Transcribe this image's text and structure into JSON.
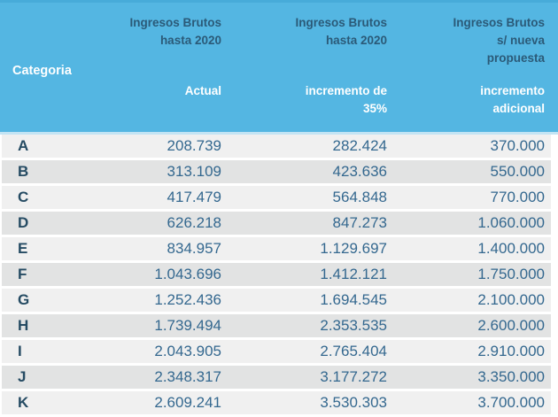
{
  "colors": {
    "header_bg": "#54b6e2",
    "header_top_strip": "#47abd9",
    "header_dark_text": "#2b5a78",
    "header_white_text": "#ffffff",
    "header_divider": "#c3e4f4",
    "row_odd_bg": "#f0f0f0",
    "row_even_bg": "#e2e3e3",
    "category_text": "#254b63",
    "number_text": "#34688f"
  },
  "header": {
    "categoria": "Categoria",
    "col_actual": {
      "group_line1": "Ingresos Brutos",
      "group_line2": "hasta 2020",
      "sub_line1": "Actual"
    },
    "col_incremento35": {
      "group_line1": "Ingresos Brutos",
      "group_line2": "hasta 2020",
      "sub_line1": "incremento de",
      "sub_line2": "35%"
    },
    "col_adicional": {
      "group_line1": "Ingresos Brutos",
      "group_line2": "s/ nueva",
      "group_line3": "propuesta",
      "sub_line1": "incremento",
      "sub_line2": "adicional"
    }
  },
  "rows": [
    {
      "cat": "A",
      "actual": "208.739",
      "incremento35": "282.424",
      "adicional": "370.000"
    },
    {
      "cat": "B",
      "actual": "313.109",
      "incremento35": "423.636",
      "adicional": "550.000"
    },
    {
      "cat": "C",
      "actual": "417.479",
      "incremento35": "564.848",
      "adicional": "770.000"
    },
    {
      "cat": "D",
      "actual": "626.218",
      "incremento35": "847.273",
      "adicional": "1.060.000"
    },
    {
      "cat": "E",
      "actual": "834.957",
      "incremento35": "1.129.697",
      "adicional": "1.400.000"
    },
    {
      "cat": "F",
      "actual": "1.043.696",
      "incremento35": "1.412.121",
      "adicional": "1.750.000"
    },
    {
      "cat": "G",
      "actual": "1.252.436",
      "incremento35": "1.694.545",
      "adicional": "2.100.000"
    },
    {
      "cat": "H",
      "actual": "1.739.494",
      "incremento35": "2.353.535",
      "adicional": "2.600.000"
    },
    {
      "cat": "I",
      "actual": "2.043.905",
      "incremento35": "2.765.404",
      "adicional": "2.910.000"
    },
    {
      "cat": "J",
      "actual": "2.348.317",
      "incremento35": "3.177.272",
      "adicional": "3.350.000"
    },
    {
      "cat": "K",
      "actual": "2.609.241",
      "incremento35": "3.530.303",
      "adicional": "3.700.000"
    }
  ],
  "chart_data": {
    "type": "table",
    "title": "",
    "columns": [
      "Categoria",
      "Ingresos Brutos hasta 2020 - Actual",
      "Ingresos Brutos hasta 2020 - incremento de 35%",
      "Ingresos Brutos s/ nueva propuesta - incremento adicional"
    ],
    "rows": [
      [
        "A",
        "208.739",
        "282.424",
        "370.000"
      ],
      [
        "B",
        "313.109",
        "423.636",
        "550.000"
      ],
      [
        "C",
        "417.479",
        "564.848",
        "770.000"
      ],
      [
        "D",
        "626.218",
        "847.273",
        "1.060.000"
      ],
      [
        "E",
        "834.957",
        "1.129.697",
        "1.400.000"
      ],
      [
        "F",
        "1.043.696",
        "1.412.121",
        "1.750.000"
      ],
      [
        "G",
        "1.252.436",
        "1.694.545",
        "2.100.000"
      ],
      [
        "H",
        "1.739.494",
        "2.353.535",
        "2.600.000"
      ],
      [
        "I",
        "2.043.905",
        "2.765.404",
        "2.910.000"
      ],
      [
        "J",
        "2.348.317",
        "3.177.272",
        "3.350.000"
      ],
      [
        "K",
        "2.609.241",
        "3.530.303",
        "3.700.000"
      ]
    ]
  }
}
